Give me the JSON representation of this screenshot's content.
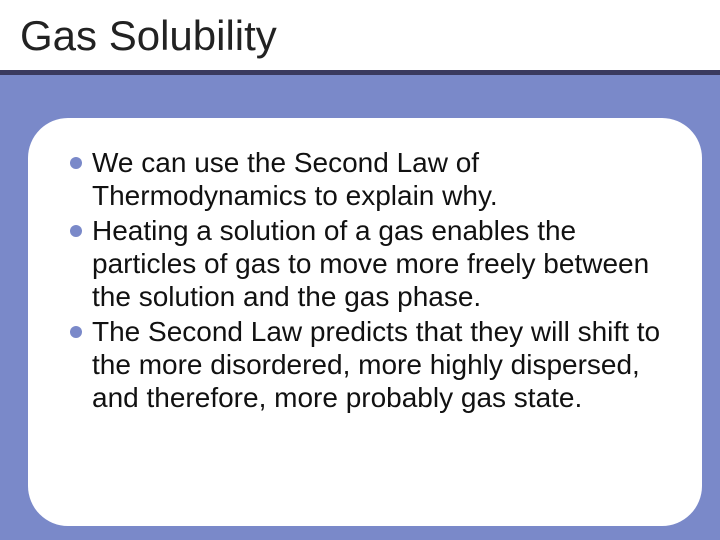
{
  "slide": {
    "title": "Gas Solubility",
    "background_color": "#7a89c9",
    "title_bar": {
      "background_color": "#ffffff",
      "underline_color": "#3a3a5e",
      "title_fontsize": 42,
      "title_color": "#222222"
    },
    "card": {
      "background_color": "#ffffff",
      "border_radius": 40
    },
    "bullet_style": {
      "marker_color": "#7a89c9",
      "marker_size": 12,
      "text_fontsize": 28,
      "text_color": "#111111"
    },
    "bullets": [
      "We can use the Second Law of Thermodynamics to explain why.",
      "Heating a solution of a gas enables the particles of gas to move more freely between the solution and the gas phase.",
      "The Second Law predicts that they will shift to the more disordered, more highly dispersed, and therefore, more probably gas state."
    ]
  }
}
